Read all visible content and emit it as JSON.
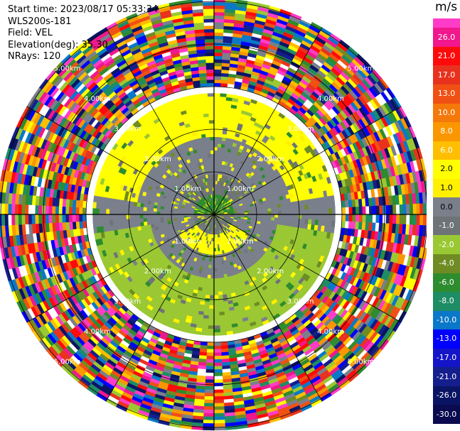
{
  "info": {
    "start_time": "Start time: 2023/08/17 05:33:34",
    "instrument": "WLS200s-181",
    "field": "Field: VEL",
    "elevation": "Elevation(deg): 35.30",
    "nrays": "NRays: 120"
  },
  "colorbar": {
    "unit": "m/s",
    "levels": [
      {
        "label": "26.0",
        "color": "#f0188c"
      },
      {
        "label": "21.0",
        "color": "#ff0a0a"
      },
      {
        "label": "17.0",
        "color": "#e8321e"
      },
      {
        "label": "13.0",
        "color": "#f05014"
      },
      {
        "label": "10.0",
        "color": "#f5780a"
      },
      {
        "label": "8.0",
        "color": "#fa9600"
      },
      {
        "label": "6.0",
        "color": "#ffbe00"
      },
      {
        "label": "2.0",
        "color": "#ffff00"
      },
      {
        "label": "1.0",
        "color": "#fff000"
      },
      {
        "label": "0.0",
        "color": "#7a7f8c"
      },
      {
        "label": "-1.0",
        "color": "#6e7378"
      },
      {
        "label": "-2.0",
        "color": "#9ac832"
      },
      {
        "label": "-4.0",
        "color": "#6e8c23"
      },
      {
        "label": "-6.0",
        "color": "#2d8c2d"
      },
      {
        "label": "-8.0",
        "color": "#1e8c64"
      },
      {
        "label": "-10.0",
        "color": "#0a78c8"
      },
      {
        "label": "-13.0",
        "color": "#0000ff"
      },
      {
        "label": "-17.0",
        "color": "#1414c8"
      },
      {
        "label": "-21.0",
        "color": "#141e8c"
      },
      {
        "label": "-26.0",
        "color": "#0a1464"
      },
      {
        "label": "-30.0",
        "color": "#0a0a50"
      }
    ],
    "top_color": "#ff3cc8"
  },
  "range_labels": [
    "1.00km",
    "2.00km",
    "3.00km",
    "4.00km",
    "5.00km"
  ],
  "scan": {
    "core_colors": [
      "#7a7f8c",
      "#6e7378",
      "#ffff00",
      "#fff000",
      "#9ac832",
      "#6e8c23",
      "#2d8c2d"
    ],
    "outer_colors": [
      "#f0188c",
      "#ff0a0a",
      "#e8321e",
      "#f05014",
      "#fa9600",
      "#ffbe00",
      "#ffff00",
      "#7a7f8c",
      "#9ac832",
      "#6e8c23",
      "#2d8c2d",
      "#1e8c64",
      "#0a78c8",
      "#0000ff",
      "#141e8c",
      "#0a1464",
      "#ff3cc8",
      "#ffffff"
    ]
  }
}
